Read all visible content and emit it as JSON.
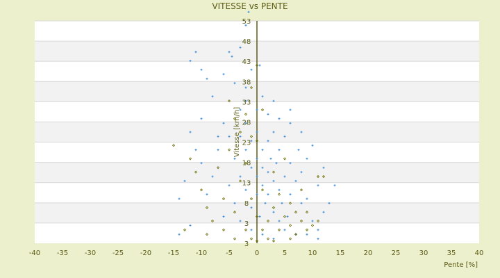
{
  "chart_data": {
    "type": "scatter",
    "title": "VITESSE vs PENTE",
    "xlabel": "Pente [%]",
    "ylabel": "Vitesse [km/h]",
    "xlim": [
      -40,
      40
    ],
    "ylim": [
      3,
      53
    ],
    "x_ticks": [
      "-40",
      "-35",
      "-30",
      "-25",
      "-20",
      "-15",
      "-10",
      "-5",
      "0",
      "5",
      "10",
      "15",
      "20",
      "25",
      "30",
      "35",
      "40"
    ],
    "y_ticks": [
      "53",
      "48",
      "43",
      "38",
      "33",
      "28",
      "23",
      "18",
      "13",
      "8",
      "3",
      "3"
    ],
    "grid": "horizontal alternating bands",
    "colors": {
      "series1": "#3a8ad8",
      "series2": "#6b6b00",
      "background": "#ecf0cd",
      "axis": "#5b5b14"
    },
    "series": [
      {
        "marker": "plus",
        "color": "#3a8ad8",
        "points": [
          [
            -11,
            46
          ],
          [
            -12,
            44
          ],
          [
            -5,
            46
          ],
          [
            -4.5,
            45
          ],
          [
            -10,
            42
          ],
          [
            -3,
            47
          ],
          [
            -2,
            52
          ],
          [
            -1.5,
            55
          ],
          [
            -9,
            40
          ],
          [
            -6,
            41
          ],
          [
            -4,
            39
          ],
          [
            -1,
            42
          ],
          [
            0.5,
            43
          ],
          [
            -2,
            38
          ],
          [
            1,
            36
          ],
          [
            3,
            35
          ],
          [
            -3,
            33
          ],
          [
            -8,
            36
          ],
          [
            6,
            30
          ],
          [
            8,
            28
          ],
          [
            4,
            31
          ],
          [
            -6,
            30
          ],
          [
            -10,
            31
          ],
          [
            -12,
            28
          ],
          [
            -11,
            24
          ],
          [
            -13,
            17
          ],
          [
            -10,
            21
          ],
          [
            -14,
            13
          ],
          [
            -14,
            5
          ],
          [
            -12,
            7
          ],
          [
            -9,
            14
          ],
          [
            -8,
            18
          ],
          [
            -7,
            24
          ],
          [
            -6,
            9
          ],
          [
            -5,
            27
          ],
          [
            -4,
            22
          ],
          [
            -4,
            12
          ],
          [
            -3,
            18
          ],
          [
            -3,
            27
          ],
          [
            -2,
            15
          ],
          [
            -2,
            24
          ],
          [
            -2,
            30
          ],
          [
            -1,
            20
          ],
          [
            -1,
            11
          ],
          [
            -1,
            26
          ],
          [
            0,
            18
          ],
          [
            0,
            22
          ],
          [
            0,
            14
          ],
          [
            0,
            28
          ],
          [
            0.5,
            9
          ],
          [
            1,
            24
          ],
          [
            1,
            16
          ],
          [
            1,
            20
          ],
          [
            1.5,
            12
          ],
          [
            2,
            26
          ],
          [
            2,
            19
          ],
          [
            2,
            14
          ],
          [
            2.5,
            22
          ],
          [
            3,
            17
          ],
          [
            3,
            10
          ],
          [
            3,
            28
          ],
          [
            3.5,
            21
          ],
          [
            4,
            15
          ],
          [
            4,
            24
          ],
          [
            4.5,
            12
          ],
          [
            5,
            18
          ],
          [
            5,
            27
          ],
          [
            5.5,
            9
          ],
          [
            6,
            14
          ],
          [
            6,
            21
          ],
          [
            7,
            17
          ],
          [
            7,
            5
          ],
          [
            7.5,
            24
          ],
          [
            8,
            12
          ],
          [
            8,
            19
          ],
          [
            9,
            13
          ],
          [
            9,
            22
          ],
          [
            10,
            25
          ],
          [
            10,
            8
          ],
          [
            11,
            16
          ],
          [
            11,
            6
          ],
          [
            12,
            10
          ],
          [
            12,
            20
          ],
          [
            13,
            12
          ],
          [
            14,
            16
          ],
          [
            3,
            4
          ],
          [
            1,
            5
          ],
          [
            -1,
            6
          ],
          [
            -3,
            8
          ],
          [
            5,
            6
          ],
          [
            9,
            5
          ],
          [
            11,
            4
          ],
          [
            -7,
            27
          ],
          [
            -5,
            16
          ],
          [
            2,
            32
          ],
          [
            0,
            33
          ],
          [
            -2,
            35
          ],
          [
            6,
            33
          ],
          [
            4,
            8
          ]
        ]
      },
      {
        "marker": "diamond",
        "color": "#6b6b00",
        "points": [
          [
            -15,
            25
          ],
          [
            -12,
            22
          ],
          [
            -11,
            19
          ],
          [
            -10,
            15
          ],
          [
            -9,
            11
          ],
          [
            -8,
            8
          ],
          [
            -7,
            20
          ],
          [
            -6,
            13
          ],
          [
            -5,
            24
          ],
          [
            -5,
            35
          ],
          [
            -4,
            31
          ],
          [
            -4,
            10
          ],
          [
            -3,
            17
          ],
          [
            -3,
            28
          ],
          [
            -2,
            6
          ],
          [
            -2,
            21
          ],
          [
            -1,
            13
          ],
          [
            -1,
            4
          ],
          [
            -1,
            38
          ],
          [
            0,
            9
          ],
          [
            0,
            3.5
          ],
          [
            0,
            26
          ],
          [
            1,
            6
          ],
          [
            1,
            15
          ],
          [
            2,
            8
          ],
          [
            2,
            4
          ],
          [
            3,
            11
          ],
          [
            3,
            19
          ],
          [
            4,
            6
          ],
          [
            4,
            14
          ],
          [
            5,
            9
          ],
          [
            5,
            22
          ],
          [
            6,
            7
          ],
          [
            6,
            12
          ],
          [
            7,
            10
          ],
          [
            7,
            5
          ],
          [
            8,
            8
          ],
          [
            8,
            15
          ],
          [
            9,
            6
          ],
          [
            9,
            10
          ],
          [
            10,
            7
          ],
          [
            11,
            8
          ],
          [
            12,
            18
          ],
          [
            11,
            18
          ],
          [
            -6,
            6
          ],
          [
            -9,
            5
          ],
          [
            -13,
            6
          ],
          [
            -2,
            32
          ],
          [
            -1,
            27
          ],
          [
            0,
            43
          ],
          [
            1,
            33
          ],
          [
            -4,
            4
          ],
          [
            3,
            3.5
          ],
          [
            6,
            4
          ]
        ]
      }
    ]
  }
}
